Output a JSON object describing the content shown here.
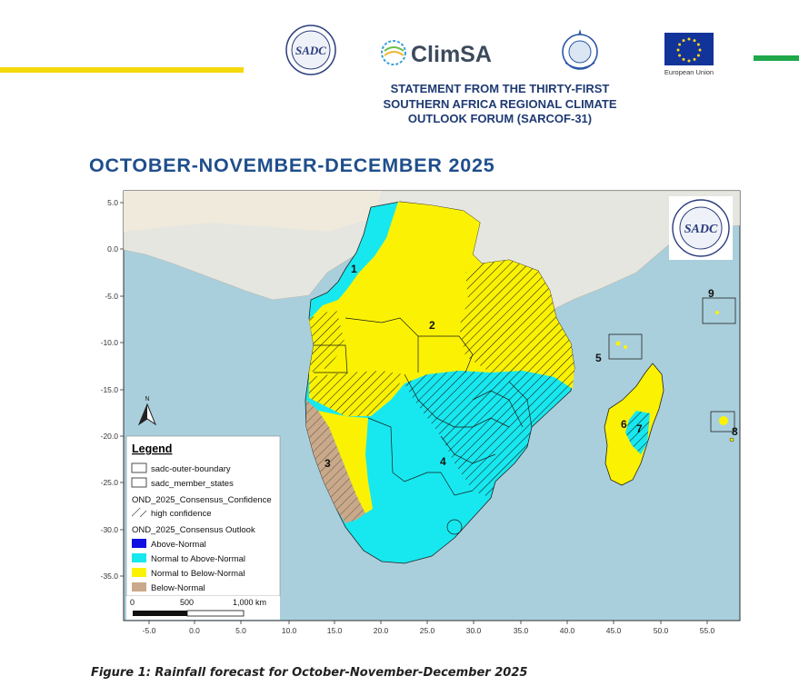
{
  "header": {
    "logos": {
      "sadc": "SADC",
      "climsa": "ClimSA",
      "eu": "European Union"
    },
    "statement_lines": [
      "STATEMENT FROM THE THIRTY-FIRST",
      "SOUTHERN AFRICA REGIONAL CLIMATE",
      "OUTLOOK FORUM (SARCOF-31)"
    ],
    "colors": {
      "yellow_bar": "#f5d90a",
      "green_bar": "#1ea84a"
    }
  },
  "title": "OCTOBER-NOVEMBER-DECEMBER 2025",
  "map": {
    "y_ticks": [
      "5.0",
      "0.0",
      "-5.0",
      "-10.0",
      "-15.0",
      "-20.0",
      "-25.0",
      "-30.0",
      "-35.0"
    ],
    "x_ticks": [
      "-5.0",
      "0.0",
      "5.0",
      "10.0",
      "15.0",
      "20.0",
      "25.0",
      "30.0",
      "35.0",
      "40.0",
      "45.0",
      "50.0",
      "55.0"
    ],
    "regions": [
      "1",
      "2",
      "3",
      "4",
      "5",
      "6",
      "7",
      "8",
      "9"
    ],
    "inset_logo": "SADC",
    "north_arrow": "N",
    "colors": {
      "ocean": "#a9cfdc",
      "land": "#e6e6e0",
      "above_normal": "#1010e0",
      "normal_to_above": "#17e8ef",
      "normal_to_below": "#fbf203",
      "below_normal": "#c9a98a"
    },
    "legend": {
      "title": "Legend",
      "boundary_items": [
        "sadc-outer-boundary",
        "sadc_member_states"
      ],
      "confidence_group": "OND_2025_Consensus_Confidence",
      "confidence_items": [
        "high confidence"
      ],
      "outlook_group": "OND_2025_Consensus Outlook",
      "outlook_items": [
        "Above-Normal",
        "Normal to Above-Normal",
        "Normal to Below-Normal",
        "Below-Normal"
      ],
      "scale_labels": [
        "0",
        "500",
        "1,000 km"
      ]
    }
  },
  "caption": "Figure 1: Rainfall forecast for October-November-December 2025"
}
